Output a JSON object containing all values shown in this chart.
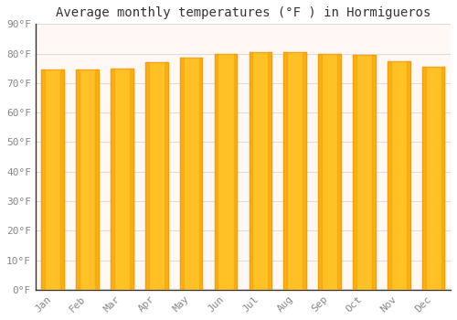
{
  "title": "Average monthly temperatures (°F ) in Hormigueros",
  "months": [
    "Jan",
    "Feb",
    "Mar",
    "Apr",
    "May",
    "Jun",
    "Jul",
    "Aug",
    "Sep",
    "Oct",
    "Nov",
    "Dec"
  ],
  "values": [
    74.5,
    74.5,
    75.0,
    77.0,
    78.5,
    80.0,
    80.5,
    80.5,
    80.0,
    79.5,
    77.5,
    75.5
  ],
  "bar_color_main": "#FFC125",
  "bar_color_left": "#F5A623",
  "bar_color_right": "#F5A623",
  "background_color": "#FFFFFF",
  "plot_bg_color": "#FFF8F5",
  "grid_color": "#DDDDDD",
  "ylim": [
    0,
    90
  ],
  "ytick_step": 10,
  "title_fontsize": 10,
  "tick_fontsize": 8,
  "font_family": "monospace",
  "tick_color": "#888888",
  "spine_color": "#333333"
}
